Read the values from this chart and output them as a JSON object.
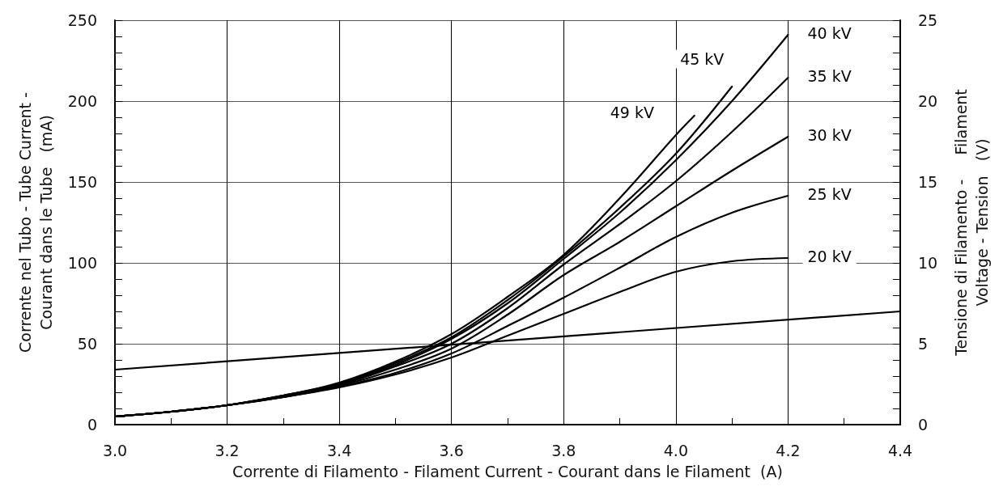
{
  "chart_data": {
    "type": "line",
    "xlabel": "Corrente di Filamento - Filament Current - Courant dans le Filament  (A)",
    "ylabel": "Corrente nel Tubo - Tube Current -\nCourant dans le Tube   (mA)",
    "y2label": "Tensione di Filamento -     Filament\nVoltage - Tension   (V)",
    "xlim": [
      3.0,
      4.4
    ],
    "xticks": [
      {
        "value": 3.0,
        "label": "3.0"
      },
      {
        "value": 3.2,
        "label": "3.2"
      },
      {
        "value": 3.4,
        "label": "3.4"
      },
      {
        "value": 3.6,
        "label": "3.6"
      },
      {
        "value": 3.8,
        "label": "3.8"
      },
      {
        "value": 4.0,
        "label": "4.0"
      },
      {
        "value": 4.2,
        "label": "4.2"
      },
      {
        "value": 4.4,
        "label": "4.4"
      }
    ],
    "ylim": [
      0,
      250
    ],
    "yticks": [
      0,
      50,
      100,
      150,
      200,
      250
    ],
    "y2lim": [
      0,
      25
    ],
    "y2ticks": [
      0,
      5,
      10,
      15,
      20,
      25
    ],
    "grid": true,
    "legend": false,
    "marker": "none",
    "line_style": "solid",
    "series": [
      {
        "name": "49 kV",
        "color": "#000000",
        "x": [
          3.0,
          3.1,
          3.2,
          3.3,
          3.4,
          3.5,
          3.6,
          3.7,
          3.8,
          3.9,
          4.0,
          4.033
        ],
        "values": [
          5,
          8,
          12,
          18,
          26,
          39,
          56,
          79,
          105,
          140,
          179,
          191
        ]
      },
      {
        "name": "45 kV",
        "color": "#000000",
        "x": [
          3.0,
          3.1,
          3.2,
          3.3,
          3.4,
          3.5,
          3.6,
          3.7,
          3.8,
          3.9,
          4.0,
          4.1
        ],
        "values": [
          5,
          8,
          12,
          18,
          25.5,
          38,
          54,
          77,
          104,
          134,
          167.5,
          209
        ]
      },
      {
        "name": "40 kV",
        "color": "#000000",
        "x": [
          3.0,
          3.1,
          3.2,
          3.3,
          3.4,
          3.5,
          3.6,
          3.7,
          3.8,
          3.9,
          4.0,
          4.1,
          4.2
        ],
        "values": [
          5,
          8,
          12,
          18,
          25,
          37,
          53,
          75,
          102.5,
          131,
          163.5,
          200,
          241
        ]
      },
      {
        "name": "35 kV",
        "color": "#000000",
        "x": [
          3.0,
          3.1,
          3.2,
          3.3,
          3.4,
          3.5,
          3.6,
          3.7,
          3.8,
          3.9,
          4.0,
          4.1,
          4.2
        ],
        "values": [
          5,
          8,
          12,
          17.5,
          24.5,
          36,
          50,
          72,
          99,
          124,
          150.5,
          181,
          214.5
        ]
      },
      {
        "name": "30 kV",
        "color": "#000000",
        "x": [
          3.0,
          3.1,
          3.2,
          3.3,
          3.4,
          3.5,
          3.6,
          3.7,
          3.8,
          3.9,
          4.0,
          4.1,
          4.2
        ],
        "values": [
          5,
          8,
          12,
          17,
          24,
          34,
          47,
          68,
          92.5,
          113,
          135,
          157,
          178
        ]
      },
      {
        "name": "25 kV",
        "color": "#000000",
        "x": [
          3.0,
          3.1,
          3.2,
          3.3,
          3.4,
          3.5,
          3.6,
          3.7,
          3.8,
          3.9,
          4.0,
          4.1,
          4.2
        ],
        "values": [
          5,
          8,
          12,
          17,
          23.5,
          32,
          44,
          61,
          78.5,
          97,
          116,
          131,
          141.5
        ]
      },
      {
        "name": "20 kV",
        "color": "#000000",
        "x": [
          3.0,
          3.1,
          3.2,
          3.3,
          3.4,
          3.5,
          3.6,
          3.7,
          3.8,
          3.9,
          4.0,
          4.1,
          4.2
        ],
        "values": [
          5,
          8,
          12,
          17,
          23,
          31,
          41.5,
          55,
          68.5,
          82,
          94.5,
          101,
          103
        ]
      },
      {
        "color": "#000000",
        "axis": "y2",
        "x": [
          3.0,
          4.4
        ],
        "values": [
          3.4,
          7.0
        ]
      }
    ]
  }
}
